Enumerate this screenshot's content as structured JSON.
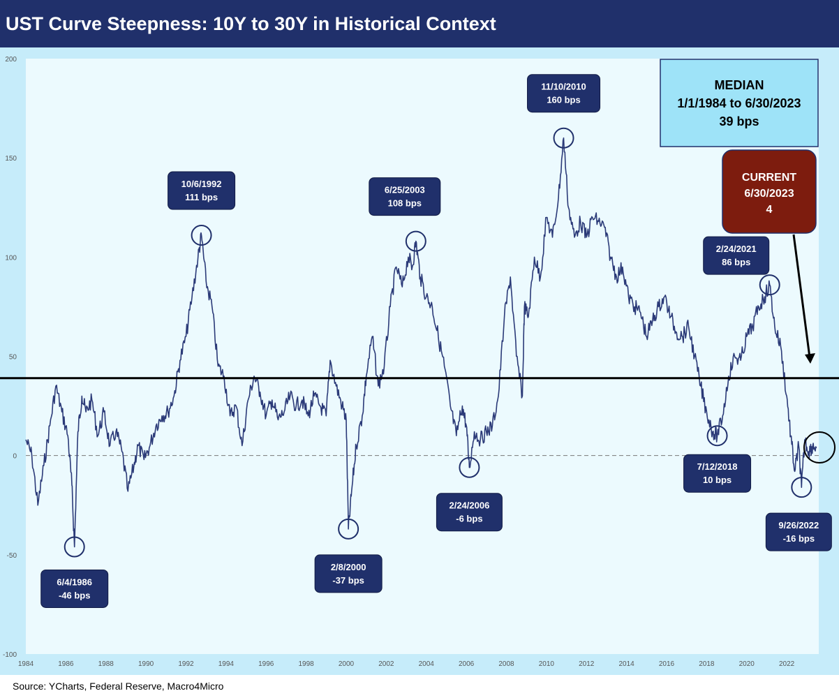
{
  "title": "UST Curve Steepness: 10Y to 30Y in Historical Context",
  "source": "Source: YCharts, Federal Reserve, Macro4Micro",
  "colors": {
    "title_bg": "#20306b",
    "frame_bg": "#c6ecfa",
    "plot_bg": "#ecfafe",
    "series": "#2b3a78",
    "label_box": "#20306b",
    "median_box": "#9ee3f8",
    "current_box": "#7d1c0e"
  },
  "chart_data": {
    "type": "line",
    "title": "UST Curve Steepness: 10Y to 30Y in Historical Context",
    "xlim": [
      1984,
      2023.6
    ],
    "ylim": [
      -100,
      200
    ],
    "yticks": [
      200,
      150,
      100,
      50,
      0,
      -50,
      -100
    ],
    "xticks": [
      "1984",
      "1986",
      "1988",
      "1990",
      "1992",
      "1994",
      "1996",
      "1998",
      "2000",
      "2002",
      "2004",
      "2006",
      "2008",
      "2010",
      "2012",
      "2014",
      "2016",
      "2018",
      "2020",
      "2022"
    ],
    "grid": false,
    "series": [
      {
        "name": "",
        "x": [
          1984.0,
          1984.3,
          1984.6,
          1984.9,
          1985.2,
          1985.5,
          1985.8,
          1986.1,
          1986.3,
          1986.43,
          1986.6,
          1986.8,
          1987.0,
          1987.3,
          1987.6,
          1987.9,
          1988.2,
          1988.5,
          1988.8,
          1989.1,
          1989.4,
          1989.6,
          1989.9,
          1990.2,
          1990.5,
          1990.8,
          1991.1,
          1991.4,
          1991.7,
          1992.0,
          1992.3,
          1992.6,
          1992.77,
          1993.0,
          1993.3,
          1993.6,
          1993.9,
          1994.2,
          1994.5,
          1994.8,
          1995.1,
          1995.4,
          1995.7,
          1996.0,
          1996.3,
          1996.6,
          1996.9,
          1997.2,
          1997.5,
          1997.8,
          1998.1,
          1998.4,
          1998.7,
          1999.0,
          1999.2,
          1999.5,
          1999.8,
          2000.0,
          2000.11,
          2000.3,
          2000.5,
          2000.8,
          2001.0,
          2001.3,
          2001.6,
          2001.9,
          2002.2,
          2002.5,
          2002.8,
          2003.1,
          2003.3,
          2003.48,
          2003.7,
          2004.0,
          2004.3,
          2004.6,
          2004.9,
          2005.2,
          2005.5,
          2005.8,
          2006.0,
          2006.15,
          2006.4,
          2006.7,
          2007.0,
          2007.3,
          2007.6,
          2007.9,
          2008.2,
          2008.5,
          2008.8,
          2008.9,
          2009.1,
          2009.4,
          2009.7,
          2010.0,
          2010.3,
          2010.6,
          2010.86,
          2011.1,
          2011.4,
          2011.7,
          2012.0,
          2012.3,
          2012.6,
          2012.9,
          2013.2,
          2013.5,
          2013.8,
          2014.1,
          2014.4,
          2014.7,
          2015.0,
          2015.3,
          2015.6,
          2015.9,
          2016.2,
          2016.5,
          2016.8,
          2017.1,
          2017.4,
          2017.7,
          2018.0,
          2018.3,
          2018.53,
          2018.8,
          2019.1,
          2019.4,
          2019.7,
          2020.0,
          2020.3,
          2020.6,
          2020.9,
          2021.15,
          2021.4,
          2021.7,
          2022.0,
          2022.2,
          2022.4,
          2022.6,
          2022.74,
          2022.9,
          2023.1,
          2023.3,
          2023.5
        ],
        "y": [
          8,
          0,
          -25,
          -5,
          15,
          35,
          22,
          10,
          -15,
          -46,
          12,
          30,
          22,
          28,
          10,
          22,
          5,
          12,
          2,
          -18,
          -5,
          5,
          -2,
          5,
          15,
          20,
          22,
          30,
          48,
          60,
          80,
          100,
          111,
          88,
          75,
          45,
          40,
          20,
          25,
          5,
          28,
          40,
          32,
          20,
          28,
          18,
          22,
          30,
          25,
          28,
          20,
          30,
          25,
          20,
          48,
          35,
          25,
          18,
          -37,
          -15,
          5,
          20,
          40,
          60,
          35,
          45,
          75,
          95,
          85,
          100,
          95,
          108,
          90,
          80,
          75,
          60,
          45,
          25,
          10,
          25,
          15,
          -6,
          12,
          8,
          12,
          15,
          30,
          70,
          90,
          50,
          30,
          75,
          70,
          100,
          90,
          120,
          110,
          130,
          160,
          125,
          110,
          118,
          110,
          120,
          118,
          115,
          100,
          90,
          95,
          80,
          75,
          72,
          60,
          68,
          75,
          80,
          70,
          62,
          60,
          65,
          50,
          35,
          22,
          12,
          10,
          20,
          40,
          50,
          48,
          60,
          65,
          75,
          80,
          86,
          65,
          55,
          30,
          10,
          -8,
          5,
          -16,
          8,
          2,
          5,
          4
        ]
      }
    ],
    "median_line": 39,
    "zero_line": 0,
    "annotations": [
      {
        "date": "6/4/1986",
        "value": "-46 bps",
        "x": 1986.43,
        "y": -46
      },
      {
        "date": "10/6/1992",
        "value": "111 bps",
        "x": 1992.77,
        "y": 111
      },
      {
        "date": "2/8/2000",
        "value": "-37 bps",
        "x": 2000.11,
        "y": -37
      },
      {
        "date": "6/25/2003",
        "value": "108 bps",
        "x": 2003.48,
        "y": 108
      },
      {
        "date": "2/24/2006",
        "value": "-6 bps",
        "x": 2006.15,
        "y": -6
      },
      {
        "date": "11/10/2010",
        "value": "160 bps",
        "x": 2010.86,
        "y": 160
      },
      {
        "date": "7/12/2018",
        "value": "10 bps",
        "x": 2018.53,
        "y": 10
      },
      {
        "date": "2/24/2021",
        "value": "86 bps",
        "x": 2021.15,
        "y": 86
      },
      {
        "date": "9/26/2022",
        "value": "-16 bps",
        "x": 2022.74,
        "y": -16
      }
    ],
    "median_box": {
      "line1": "MEDIAN",
      "line2": "1/1/1984 to 6/30/2023",
      "line3": "39 bps"
    },
    "current_box": {
      "line1": "CURRENT",
      "line2": "6/30/2023",
      "line3": "4"
    }
  }
}
